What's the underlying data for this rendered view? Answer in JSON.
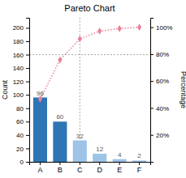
{
  "chart_data": {
    "type": "bar",
    "title": "Pareto Chart",
    "categories": [
      "A",
      "B",
      "C",
      "D",
      "E",
      "F"
    ],
    "series": [
      {
        "type": "bar",
        "colors": [
          "#2E75B6",
          "#2E75B6",
          "#9DC3E6",
          "#9DC3E6",
          "#9DC3E6",
          "#9DC3E6"
        ],
        "data_labels": true,
        "values": [
          96,
          60,
          32,
          12,
          4,
          2
        ]
      },
      {
        "type": "line",
        "axis": "y2",
        "color": "#E88098",
        "marker": "diamond",
        "line_style": "dotted",
        "values": [
          46.6,
          75.7,
          91.3,
          97.1,
          99.0,
          100.0
        ]
      }
    ],
    "ylabel": "Count",
    "y2label": "Percentage",
    "ylim": [
      0,
      215
    ],
    "yticks": [
      0,
      20,
      40,
      60,
      80,
      100,
      120,
      140,
      160,
      180,
      200
    ],
    "y2lim": [
      0,
      107
    ],
    "y2ticks": [
      {
        "value": 20,
        "label": "20%"
      },
      {
        "value": 40,
        "label": "40%"
      },
      {
        "value": 60,
        "label": "60%"
      },
      {
        "value": 80,
        "label": "80%"
      },
      {
        "value": 100,
        "label": "100%"
      }
    ],
    "hline": 160,
    "vline": "C",
    "grid": false
  }
}
